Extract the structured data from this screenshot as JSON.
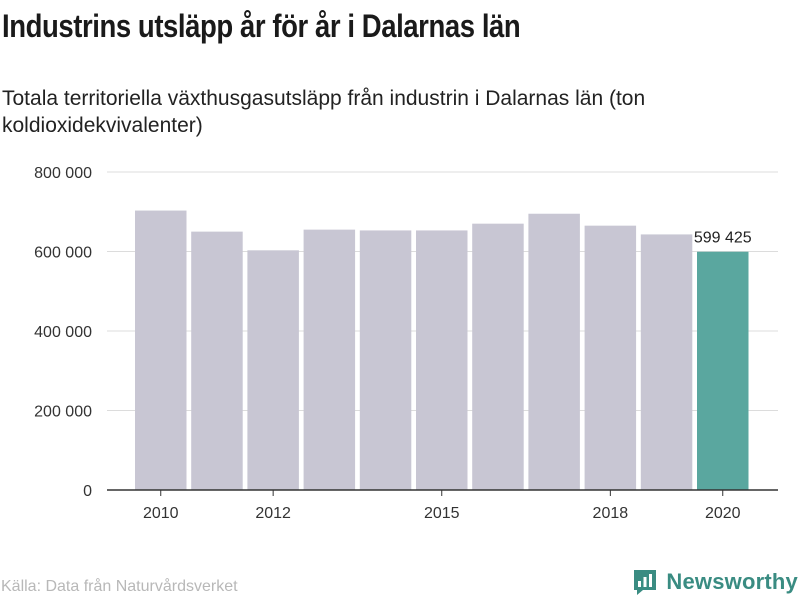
{
  "title": "Industrins utsläpp år för år i Dalarnas län",
  "subtitle": "Totala territoriella växthusgasutsläpp från industrin i Dalarnas län (ton koldioxidekvivalenter)",
  "source": "Källa: Data från Naturvårdsverket",
  "brand": "Newsworthy",
  "colors": {
    "bar": "#c8c6d3",
    "highlight": "#5aa79f",
    "grid": "#dcdcdc",
    "axis": "#333333",
    "brand": "#3a8c82"
  },
  "chart_data": {
    "type": "bar",
    "title": "Industrins utsläpp år för år i Dalarnas län",
    "subtitle": "Totala territoriella växthusgasutsläpp från industrin i Dalarnas län (ton koldioxidekvivalenter)",
    "categories": [
      "2010",
      "2011",
      "2012",
      "2013",
      "2014",
      "2015",
      "2016",
      "2017",
      "2018",
      "2019",
      "2020"
    ],
    "values": [
      703000,
      650000,
      603000,
      655000,
      653000,
      653000,
      670000,
      695000,
      665000,
      643000,
      599425
    ],
    "x_tick_labels": [
      "2010",
      "2012",
      "2015",
      "2018",
      "2020"
    ],
    "y_ticks": [
      0,
      200000,
      400000,
      600000,
      800000
    ],
    "y_tick_labels": [
      "0",
      "200 000",
      "400 000",
      "600 000",
      "800 000"
    ],
    "ylim": [
      0,
      800000
    ],
    "highlight_index": 10,
    "highlight_label": "599 425",
    "grid": true
  }
}
